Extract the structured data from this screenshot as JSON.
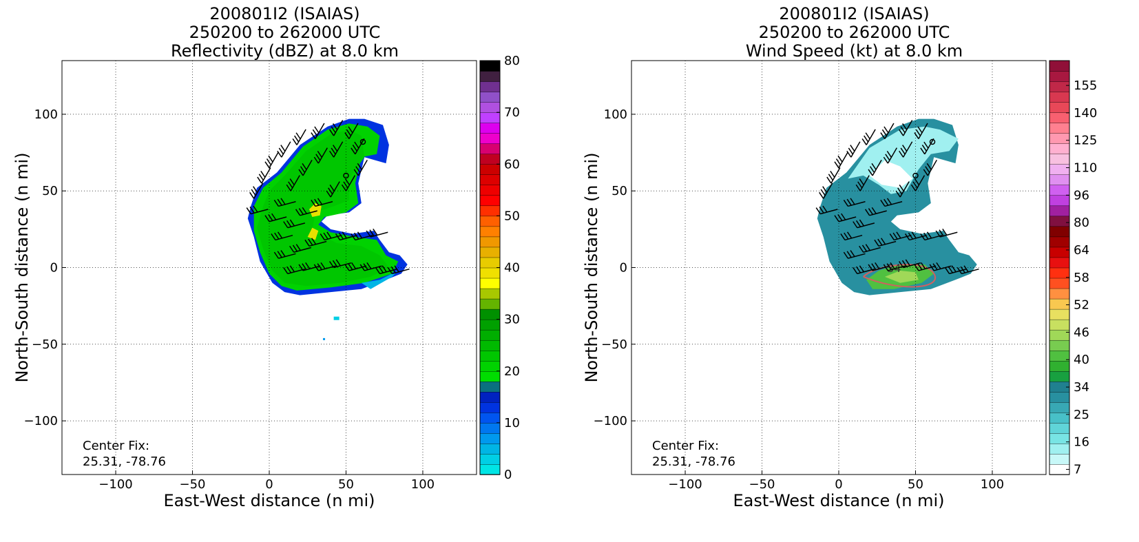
{
  "panels": [
    {
      "title": [
        "200801I2 (ISAIAS)",
        "250200 to 262000 UTC",
        "Reflectivity (dBZ) at 8.0 km"
      ],
      "xlabel": "East-West distance (n mi)",
      "ylabel": "North-South distance (n mi)",
      "center_fix_label": "Center Fix:",
      "center_fix_value": "25.31, -78.76",
      "colorbar": {
        "colors": [
          "#00e5e5",
          "#00cfe5",
          "#00b5e5",
          "#0099ee",
          "#0077f0",
          "#0055f0",
          "#0033e0",
          "#0022c0",
          "#0a7080",
          "#00dd00",
          "#00d200",
          "#00c600",
          "#00ba00",
          "#00ae00",
          "#00a000",
          "#009000",
          "#64b400",
          "#a8c800",
          "#ffff00",
          "#f0e000",
          "#e8cc00",
          "#e8b000",
          "#f09800",
          "#ff8000",
          "#ff6000",
          "#ff3000",
          "#ff0000",
          "#ee0000",
          "#dd0000",
          "#cc0000",
          "#c00020",
          "#d80070",
          "#ee00cc",
          "#dd00ee",
          "#c040ff",
          "#b050e0",
          "#9050c8",
          "#703090",
          "#402040",
          "#000000"
        ],
        "ticks": [
          "0",
          "10",
          "20",
          "30",
          "40",
          "50",
          "60",
          "70",
          "80"
        ]
      }
    },
    {
      "title": [
        "200801I2 (ISAIAS)",
        "250200 to 262000 UTC",
        "Wind Speed (kt) at 8.0 km"
      ],
      "xlabel": "East-West distance (n mi)",
      "ylabel": "North-South distance (n mi)",
      "center_fix_label": "Center Fix:",
      "center_fix_value": "25.31, -78.76",
      "contour_label": "34",
      "colorbar": {
        "colors": [
          "#ffffff",
          "#c8f8f8",
          "#a0f0f0",
          "#78e4e4",
          "#60d4d8",
          "#48c0c8",
          "#38a8b4",
          "#2890a0",
          "#208090",
          "#18a040",
          "#30b030",
          "#50c040",
          "#78cc50",
          "#a0d858",
          "#c8e060",
          "#e8e060",
          "#f8c850",
          "#ff9040",
          "#ff5020",
          "#ff3010",
          "#e81010",
          "#c80000",
          "#a00000",
          "#800000",
          "#801040",
          "#a020a0",
          "#c040e0",
          "#d060f0",
          "#e090f0",
          "#f0b0f0",
          "#f8c0e0",
          "#ffb0d0",
          "#ff98b0",
          "#ff8090",
          "#f86070",
          "#e84858",
          "#d83850",
          "#c02848",
          "#a81840",
          "#901038"
        ],
        "ticks": [
          "7",
          "16",
          "25",
          "34",
          "40",
          "46",
          "52",
          "58",
          "64",
          "80",
          "96",
          "110",
          "125",
          "140",
          "155"
        ]
      }
    }
  ],
  "chart_data": [
    {
      "type": "heatmap",
      "variable": "Reflectivity (dBZ)",
      "height_km": 8.0,
      "xlim": [
        -135,
        135
      ],
      "ylim": [
        -135,
        135
      ],
      "x_ticks": [
        -100,
        -50,
        0,
        50,
        100
      ],
      "y_ticks": [
        -100,
        -50,
        0,
        50,
        100
      ],
      "grid": true,
      "colorbar_range": [
        0,
        80
      ],
      "echo_region": "comma-shaped echo mostly 18-28 dBZ (green) with 30-38 dBZ (yellow) cores near x=30, y=25-40; blue 5-15 dBZ fringes",
      "center_fix": [
        25.31,
        -78.76
      ],
      "markers": [
        {
          "x": 50,
          "y": 60
        },
        {
          "x": 61,
          "y": 82
        }
      ]
    },
    {
      "type": "heatmap",
      "variable": "Wind Speed (kt)",
      "height_km": 8.0,
      "xlim": [
        -135,
        135
      ],
      "ylim": [
        -135,
        135
      ],
      "x_ticks": [
        -100,
        -50,
        0,
        50,
        100
      ],
      "y_ticks": [
        -100,
        -50,
        0,
        50,
        100
      ],
      "grid": true,
      "colorbar_range": [
        7,
        160
      ],
      "contours": [
        34
      ],
      "echo_region": "winds mostly 10-30 kt (cyan/teal), 34-40 kt (green) near x=30-50, y=-10 to 0",
      "center_fix": [
        25.31,
        -78.76
      ],
      "markers": [
        {
          "x": 50,
          "y": 60
        },
        {
          "x": 61,
          "y": 82
        }
      ]
    }
  ]
}
